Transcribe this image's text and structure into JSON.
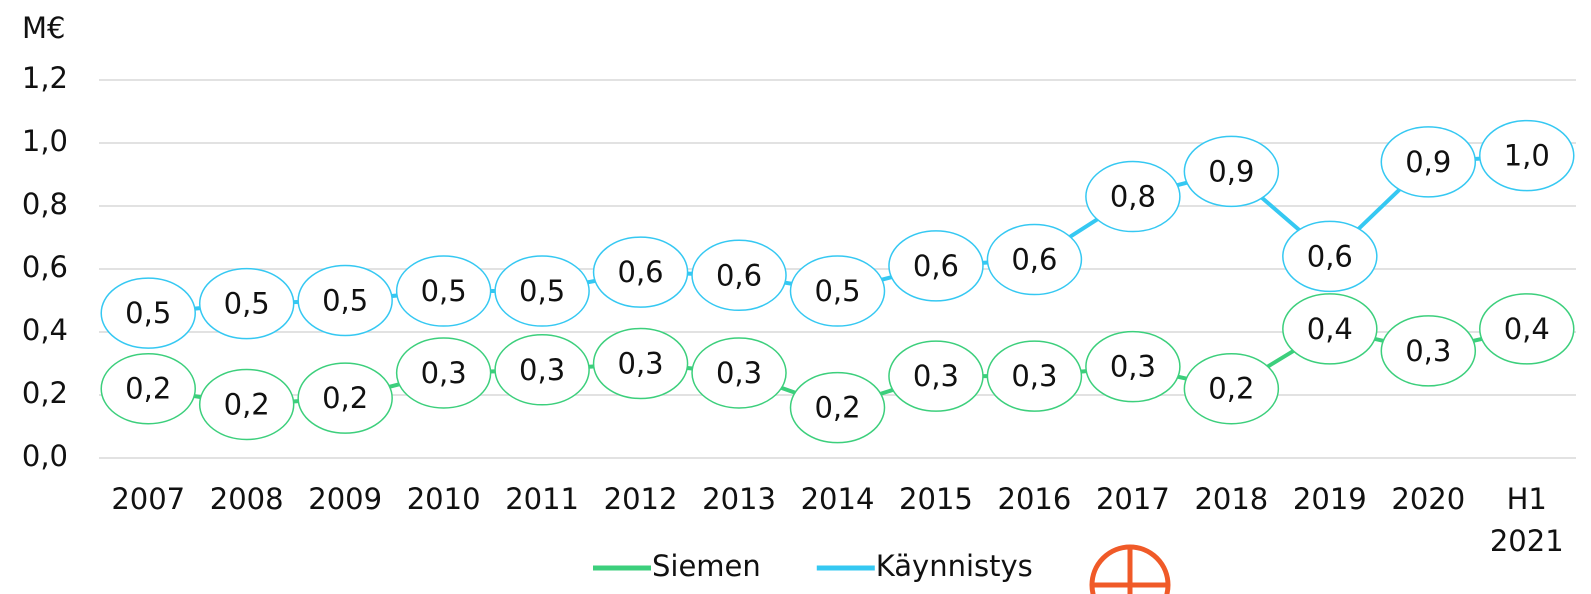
{
  "chart_data": {
    "type": "line",
    "y_label": "M€",
    "categories": [
      "2007",
      "2008",
      "2009",
      "2010",
      "2011",
      "2012",
      "2013",
      "2014",
      "2015",
      "2016",
      "2017",
      "2018",
      "2019",
      "2020",
      "H1 2021"
    ],
    "series": [
      {
        "name": "Siemen",
        "color": "#3ccf7c",
        "values": [
          0.22,
          0.17,
          0.19,
          0.27,
          0.28,
          0.3,
          0.27,
          0.16,
          0.26,
          0.26,
          0.29,
          0.22,
          0.41,
          0.34,
          0.41
        ],
        "value_labels": [
          "0,2",
          "0,2",
          "0,2",
          "0,3",
          "0,3",
          "0,3",
          "0,3",
          "0,2",
          "0,3",
          "0,3",
          "0,3",
          "0,2",
          "0,4",
          "0,3",
          "0,4"
        ]
      },
      {
        "name": "Käynnistys",
        "color": "#35c8f2",
        "values": [
          0.46,
          0.49,
          0.5,
          0.53,
          0.53,
          0.59,
          0.58,
          0.53,
          0.61,
          0.63,
          0.83,
          0.91,
          0.64,
          0.94,
          0.96
        ],
        "value_labels": [
          "0,5",
          "0,5",
          "0,5",
          "0,5",
          "0,5",
          "0,6",
          "0,6",
          "0,5",
          "0,6",
          "0,6",
          "0,8",
          "0,9",
          "0,6",
          "0,9",
          "1,0"
        ]
      }
    ],
    "ylim": [
      0,
      1.2
    ],
    "yticks": [
      {
        "value": 0,
        "label": "0,0"
      },
      {
        "value": 0.2,
        "label": "0,2"
      },
      {
        "value": 0.4,
        "label": "0,4"
      },
      {
        "value": 0.6,
        "label": "0,6"
      },
      {
        "value": 0.8,
        "label": "0,8"
      },
      {
        "value": 1.0,
        "label": "1,0"
      },
      {
        "value": 1.2,
        "label": "1,2"
      }
    ],
    "grid": true,
    "legend": "bottom"
  }
}
